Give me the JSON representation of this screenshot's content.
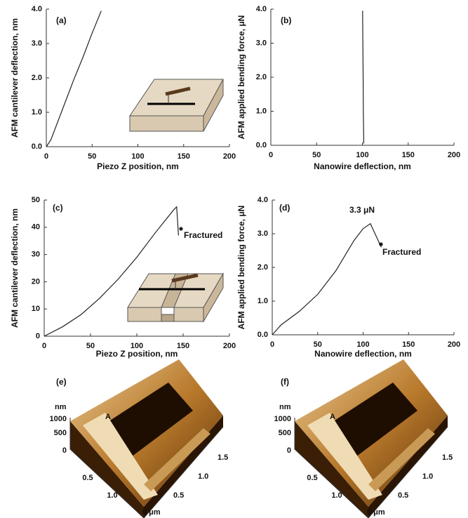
{
  "chart_data": [
    {
      "type": "line",
      "label": "(a)",
      "x_label": "Piezo Z position, nm",
      "y_label": "AFM cantilever deflection, nm",
      "x": [
        0,
        5,
        10,
        20,
        30,
        40,
        50,
        60
      ],
      "values": [
        0,
        0.2,
        0.55,
        1.25,
        1.95,
        2.6,
        3.3,
        3.95
      ],
      "color": "#222222",
      "xlim": [
        0,
        200
      ],
      "ylim": [
        0,
        4
      ],
      "xticks": [
        0,
        50,
        100,
        150,
        200
      ],
      "yticks": [
        {
          "value": 0,
          "label": "0.0"
        },
        {
          "value": 1,
          "label": "1.0"
        },
        {
          "value": 2,
          "label": "2.0"
        },
        {
          "value": 3,
          "label": "3.0"
        },
        {
          "value": 4,
          "label": "4.0"
        }
      ],
      "annotations": []
    },
    {
      "type": "line",
      "label": "(b)",
      "x_label": "Nanowire deflection, nm",
      "y_label": "AFM applied bending force, μN",
      "x": [
        101.5,
        101,
        100.8,
        100.5,
        100.2
      ],
      "values": [
        0.05,
        1,
        2,
        3,
        3.95
      ],
      "color": "#222222",
      "xlim": [
        0,
        200
      ],
      "ylim": [
        0,
        4
      ],
      "xticks": [
        0,
        50,
        100,
        150,
        200
      ],
      "yticks": [
        {
          "value": 0,
          "label": "0.0"
        },
        {
          "value": 1,
          "label": "1.0"
        },
        {
          "value": 2,
          "label": "2.0"
        },
        {
          "value": 3,
          "label": "3.0"
        },
        {
          "value": 4,
          "label": "4.0"
        }
      ],
      "annotations": []
    },
    {
      "type": "line",
      "label": "(c)",
      "x_label": "Piezo Z position, nm",
      "y_label": "AFM cantilever deflection, nm",
      "x": [
        0,
        20,
        40,
        60,
        80,
        100,
        120,
        140,
        143,
        145
      ],
      "values": [
        0,
        3.5,
        8,
        14,
        21,
        29,
        38,
        46.5,
        47.5,
        37
      ],
      "color": "#222222",
      "xlim": [
        0,
        200
      ],
      "ylim": [
        0,
        50
      ],
      "xticks": [
        0,
        50,
        100,
        150,
        200
      ],
      "yticks": [
        0,
        10,
        20,
        30,
        40,
        50
      ],
      "annotations": [
        "Fractured"
      ]
    },
    {
      "type": "line",
      "label": "(d)",
      "x_label": "Nanowire deflection, nm",
      "y_label": "AFM applied bending force, μN",
      "x": [
        0,
        10,
        30,
        50,
        70,
        90,
        100,
        108,
        120
      ],
      "values": [
        0,
        0.3,
        0.7,
        1.2,
        1.9,
        2.8,
        3.15,
        3.3,
        2.6
      ],
      "color": "#222222",
      "xlim": [
        0,
        200
      ],
      "ylim": [
        0,
        4
      ],
      "xticks": [
        0,
        50,
        100,
        150,
        200
      ],
      "yticks": [
        {
          "value": 0,
          "label": "0.0"
        },
        {
          "value": 1,
          "label": "1.0"
        },
        {
          "value": 2,
          "label": "2.0"
        },
        {
          "value": 3,
          "label": "3.0"
        },
        {
          "value": 4,
          "label": "4.0"
        }
      ],
      "annotations": [
        "3.3 μN",
        "Fractured"
      ]
    }
  ],
  "images": [
    {
      "label": "(e)",
      "z_unit": "nm",
      "z_ticks": [
        "1000",
        "500",
        "0"
      ],
      "marker": "A",
      "left_ticks": [
        "0.5",
        "1.0"
      ],
      "origin": "0 μm",
      "right_ticks": [
        "0.5",
        "1.0",
        "1.5"
      ]
    },
    {
      "label": "(f)",
      "z_unit": "nm",
      "z_ticks": [
        "1000",
        "500",
        "0"
      ],
      "marker": "A",
      "left_ticks": [
        "0.5",
        "1.0"
      ],
      "origin": "0 μm",
      "right_ticks": [
        "0.5",
        "1.0",
        "1.5"
      ]
    }
  ]
}
